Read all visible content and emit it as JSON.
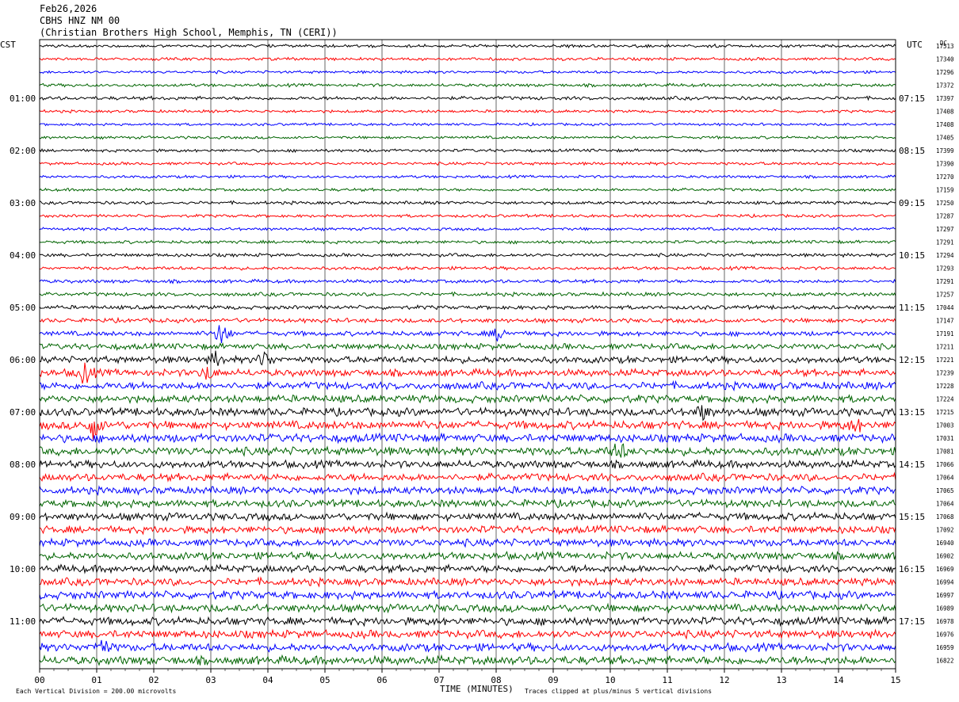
{
  "header": {
    "date": "Feb26,2026",
    "station": "CBHS HNZ NM 00",
    "location": "(Christian Brothers High School, Memphis, TN (CERI))"
  },
  "labels": {
    "left_tz": "CST",
    "right_tz": "UTC",
    "dc": "DC",
    "xlabel": "TIME (MINUTES)",
    "footer_left": "Each Vertical Division =  200.00 microvolts",
    "footer_right": "Traces clipped at plus/minus 5 vertical divisions"
  },
  "colors": {
    "trace_cycle": [
      "#000000",
      "#ff0000",
      "#0000ff",
      "#006400"
    ],
    "grid": "#000000",
    "background": "#ffffff"
  },
  "chart_data": {
    "type": "line",
    "title": "CBHS HNZ NM 00",
    "xlabel": "TIME (MINUTES)",
    "xlim": [
      0,
      15
    ],
    "x_ticks": [
      "00",
      "01",
      "02",
      "03",
      "04",
      "05",
      "06",
      "07",
      "08",
      "09",
      "10",
      "11",
      "12",
      "13",
      "14",
      "15"
    ],
    "left_hour_labels": [
      "01:00",
      "02:00",
      "03:00",
      "04:00",
      "05:00",
      "06:00",
      "07:00",
      "08:00",
      "09:00",
      "10:00",
      "11:00"
    ],
    "right_hour_labels": [
      "07:15",
      "08:15",
      "09:15",
      "10:15",
      "11:15",
      "12:15",
      "13:15",
      "14:15",
      "15:15",
      "16:15",
      "17:15"
    ],
    "hour_label_rows": [
      4,
      8,
      12,
      16,
      20,
      24,
      28,
      32,
      36,
      40,
      44
    ],
    "rms_values": [
      17513,
      17340,
      17296,
      17372,
      17397,
      17408,
      17408,
      17405,
      17399,
      17390,
      17270,
      17159,
      17250,
      17287,
      17297,
      17291,
      17294,
      17293,
      17291,
      17257,
      17044,
      17147,
      17191,
      17211,
      17221,
      17239,
      17228,
      17224,
      17215,
      17003,
      17031,
      17081,
      17066,
      17064,
      17065,
      17064,
      17068,
      17092,
      16940,
      16902,
      16969,
      16994,
      16997,
      16989,
      16978,
      16976,
      16959,
      16822
    ],
    "trace_noise_level": [
      1.5,
      1.5,
      1.4,
      1.6,
      1.8,
      1.4,
      1.3,
      1.4,
      1.5,
      1.5,
      1.4,
      1.5,
      1.6,
      1.5,
      1.5,
      1.6,
      1.7,
      1.7,
      1.8,
      1.9,
      2.0,
      2.2,
      2.4,
      3.0,
      3.4,
      3.6,
      3.8,
      3.8,
      4.0,
      4.2,
      4.2,
      4.2,
      3.8,
      3.8,
      3.8,
      3.8,
      3.8,
      3.8,
      3.8,
      3.8,
      3.8,
      3.8,
      4.0,
      4.0,
      4.0,
      4.0,
      4.0,
      4.4
    ],
    "events": [
      {
        "row": 22,
        "minute": 3.2,
        "amplitude": 5
      },
      {
        "row": 22,
        "minute": 8.05,
        "amplitude": 2.5
      },
      {
        "row": 24,
        "minute": 3.95,
        "amplitude": 3
      },
      {
        "row": 24,
        "minute": 3.1,
        "amplitude": 2.5
      },
      {
        "row": 25,
        "minute": 0.8,
        "amplitude": 4
      },
      {
        "row": 25,
        "minute": 2.95,
        "amplitude": 2.5
      },
      {
        "row": 29,
        "minute": 0.95,
        "amplitude": 4.5
      },
      {
        "row": 29,
        "minute": 14.3,
        "amplitude": 2.5
      },
      {
        "row": 31,
        "minute": 10.15,
        "amplitude": 3.5
      },
      {
        "row": 28,
        "minute": 11.6,
        "amplitude": 2.5
      },
      {
        "row": 46,
        "minute": 1.1,
        "amplitude": 3
      }
    ]
  }
}
